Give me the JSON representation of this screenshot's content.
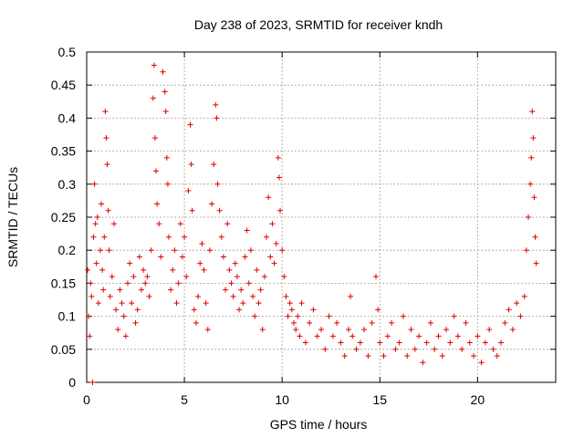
{
  "chart_data": {
    "type": "scatter",
    "title": "Day 238 of 2023, SRMTID for receiver kndh",
    "xlabel": "GPS time / hours",
    "ylabel": "SRMTID / TECUs",
    "xlim": [
      0,
      24
    ],
    "ylim": [
      0,
      0.5
    ],
    "xticks": [
      0,
      5,
      10,
      15,
      20
    ],
    "xtick_labels": [
      "0",
      "5",
      "10",
      "15",
      "20"
    ],
    "yticks": [
      0,
      0.05,
      0.1,
      0.15,
      0.2,
      0.25,
      0.3,
      0.35,
      0.4,
      0.45,
      0.5
    ],
    "ytick_labels": [
      "0",
      "0.05",
      "0.1",
      "0.15",
      "0.2",
      "0.25",
      "0.3",
      "0.35",
      "0.4",
      "0.45",
      "0.5"
    ],
    "grid": true,
    "marker": "plus",
    "color": "#e00000",
    "series": [
      {
        "name": "SRMTID",
        "points": [
          [
            0.05,
            0.17
          ],
          [
            0.1,
            0.1
          ],
          [
            0.15,
            0.07
          ],
          [
            0.2,
            0.15
          ],
          [
            0.25,
            0.13
          ],
          [
            0.3,
            0.0
          ],
          [
            0.35,
            0.22
          ],
          [
            0.4,
            0.3
          ],
          [
            0.45,
            0.24
          ],
          [
            0.5,
            0.18
          ],
          [
            0.55,
            0.25
          ],
          [
            0.6,
            0.12
          ],
          [
            0.7,
            0.2
          ],
          [
            0.75,
            0.27
          ],
          [
            0.8,
            0.17
          ],
          [
            0.85,
            0.14
          ],
          [
            0.9,
            0.22
          ],
          [
            0.95,
            0.41
          ],
          [
            1.0,
            0.37
          ],
          [
            1.05,
            0.33
          ],
          [
            1.1,
            0.26
          ],
          [
            1.15,
            0.2
          ],
          [
            1.2,
            0.13
          ],
          [
            1.3,
            0.16
          ],
          [
            1.4,
            0.24
          ],
          [
            1.5,
            0.11
          ],
          [
            1.6,
            0.08
          ],
          [
            1.7,
            0.14
          ],
          [
            1.8,
            0.12
          ],
          [
            1.9,
            0.1
          ],
          [
            2.0,
            0.07
          ],
          [
            2.1,
            0.15
          ],
          [
            2.2,
            0.18
          ],
          [
            2.3,
            0.12
          ],
          [
            2.4,
            0.16
          ],
          [
            2.5,
            0.09
          ],
          [
            2.6,
            0.11
          ],
          [
            2.7,
            0.19
          ],
          [
            2.8,
            0.14
          ],
          [
            2.9,
            0.17
          ],
          [
            3.0,
            0.15
          ],
          [
            3.1,
            0.16
          ],
          [
            3.2,
            0.13
          ],
          [
            3.3,
            0.2
          ],
          [
            3.4,
            0.43
          ],
          [
            3.45,
            0.48
          ],
          [
            3.5,
            0.37
          ],
          [
            3.55,
            0.32
          ],
          [
            3.6,
            0.27
          ],
          [
            3.7,
            0.24
          ],
          [
            3.8,
            0.19
          ],
          [
            3.9,
            0.47
          ],
          [
            4.0,
            0.44
          ],
          [
            4.05,
            0.41
          ],
          [
            4.1,
            0.34
          ],
          [
            4.15,
            0.3
          ],
          [
            4.2,
            0.22
          ],
          [
            4.3,
            0.14
          ],
          [
            4.4,
            0.17
          ],
          [
            4.5,
            0.2
          ],
          [
            4.6,
            0.12
          ],
          [
            4.7,
            0.15
          ],
          [
            4.8,
            0.24
          ],
          [
            4.9,
            0.19
          ],
          [
            5.0,
            0.22
          ],
          [
            5.1,
            0.16
          ],
          [
            5.2,
            0.29
          ],
          [
            5.3,
            0.39
          ],
          [
            5.35,
            0.33
          ],
          [
            5.4,
            0.26
          ],
          [
            5.5,
            0.11
          ],
          [
            5.6,
            0.09
          ],
          [
            5.7,
            0.13
          ],
          [
            5.8,
            0.18
          ],
          [
            5.9,
            0.21
          ],
          [
            6.0,
            0.17
          ],
          [
            6.1,
            0.12
          ],
          [
            6.2,
            0.08
          ],
          [
            6.3,
            0.2
          ],
          [
            6.4,
            0.27
          ],
          [
            6.5,
            0.33
          ],
          [
            6.6,
            0.42
          ],
          [
            6.65,
            0.4
          ],
          [
            6.7,
            0.3
          ],
          [
            6.8,
            0.26
          ],
          [
            6.9,
            0.22
          ],
          [
            7.0,
            0.19
          ],
          [
            7.1,
            0.14
          ],
          [
            7.2,
            0.24
          ],
          [
            7.3,
            0.17
          ],
          [
            7.4,
            0.15
          ],
          [
            7.5,
            0.13
          ],
          [
            7.6,
            0.18
          ],
          [
            7.7,
            0.16
          ],
          [
            7.8,
            0.11
          ],
          [
            7.9,
            0.14
          ],
          [
            8.0,
            0.12
          ],
          [
            8.1,
            0.19
          ],
          [
            8.2,
            0.23
          ],
          [
            8.3,
            0.15
          ],
          [
            8.4,
            0.2
          ],
          [
            8.5,
            0.13
          ],
          [
            8.6,
            0.1
          ],
          [
            8.7,
            0.17
          ],
          [
            8.8,
            0.12
          ],
          [
            8.9,
            0.14
          ],
          [
            9.0,
            0.08
          ],
          [
            9.1,
            0.16
          ],
          [
            9.2,
            0.22
          ],
          [
            9.3,
            0.28
          ],
          [
            9.4,
            0.19
          ],
          [
            9.5,
            0.24
          ],
          [
            9.6,
            0.18
          ],
          [
            9.7,
            0.21
          ],
          [
            9.8,
            0.34
          ],
          [
            9.85,
            0.31
          ],
          [
            9.9,
            0.26
          ],
          [
            10.0,
            0.2
          ],
          [
            10.1,
            0.16
          ],
          [
            10.2,
            0.13
          ],
          [
            10.3,
            0.1
          ],
          [
            10.4,
            0.12
          ],
          [
            10.5,
            0.11
          ],
          [
            10.6,
            0.09
          ],
          [
            10.7,
            0.08
          ],
          [
            10.8,
            0.1
          ],
          [
            10.9,
            0.07
          ],
          [
            11.0,
            0.12
          ],
          [
            11.2,
            0.06
          ],
          [
            11.4,
            0.09
          ],
          [
            11.6,
            0.11
          ],
          [
            11.8,
            0.07
          ],
          [
            12.0,
            0.08
          ],
          [
            12.2,
            0.05
          ],
          [
            12.4,
            0.1
          ],
          [
            12.6,
            0.07
          ],
          [
            12.8,
            0.09
          ],
          [
            13.0,
            0.06
          ],
          [
            13.2,
            0.04
          ],
          [
            13.4,
            0.08
          ],
          [
            13.5,
            0.13
          ],
          [
            13.6,
            0.07
          ],
          [
            13.8,
            0.05
          ],
          [
            14.0,
            0.06
          ],
          [
            14.2,
            0.08
          ],
          [
            14.4,
            0.04
          ],
          [
            14.6,
            0.09
          ],
          [
            14.8,
            0.16
          ],
          [
            14.9,
            0.11
          ],
          [
            15.0,
            0.06
          ],
          [
            15.2,
            0.04
          ],
          [
            15.4,
            0.07
          ],
          [
            15.6,
            0.09
          ],
          [
            15.8,
            0.05
          ],
          [
            16.0,
            0.06
          ],
          [
            16.2,
            0.1
          ],
          [
            16.4,
            0.04
          ],
          [
            16.6,
            0.08
          ],
          [
            16.8,
            0.05
          ],
          [
            17.0,
            0.07
          ],
          [
            17.2,
            0.03
          ],
          [
            17.4,
            0.06
          ],
          [
            17.6,
            0.09
          ],
          [
            17.8,
            0.05
          ],
          [
            18.0,
            0.07
          ],
          [
            18.2,
            0.04
          ],
          [
            18.4,
            0.08
          ],
          [
            18.6,
            0.06
          ],
          [
            18.8,
            0.1
          ],
          [
            19.0,
            0.07
          ],
          [
            19.2,
            0.05
          ],
          [
            19.4,
            0.09
          ],
          [
            19.6,
            0.06
          ],
          [
            19.8,
            0.04
          ],
          [
            20.0,
            0.07
          ],
          [
            20.2,
            0.03
          ],
          [
            20.4,
            0.06
          ],
          [
            20.6,
            0.08
          ],
          [
            20.8,
            0.05
          ],
          [
            21.0,
            0.04
          ],
          [
            21.2,
            0.06
          ],
          [
            21.4,
            0.09
          ],
          [
            21.6,
            0.11
          ],
          [
            21.8,
            0.08
          ],
          [
            22.0,
            0.12
          ],
          [
            22.2,
            0.1
          ],
          [
            22.4,
            0.13
          ],
          [
            22.5,
            0.2
          ],
          [
            22.6,
            0.25
          ],
          [
            22.7,
            0.3
          ],
          [
            22.75,
            0.34
          ],
          [
            22.8,
            0.41
          ],
          [
            22.85,
            0.37
          ],
          [
            22.9,
            0.28
          ],
          [
            22.95,
            0.22
          ],
          [
            23.0,
            0.18
          ]
        ]
      }
    ]
  }
}
